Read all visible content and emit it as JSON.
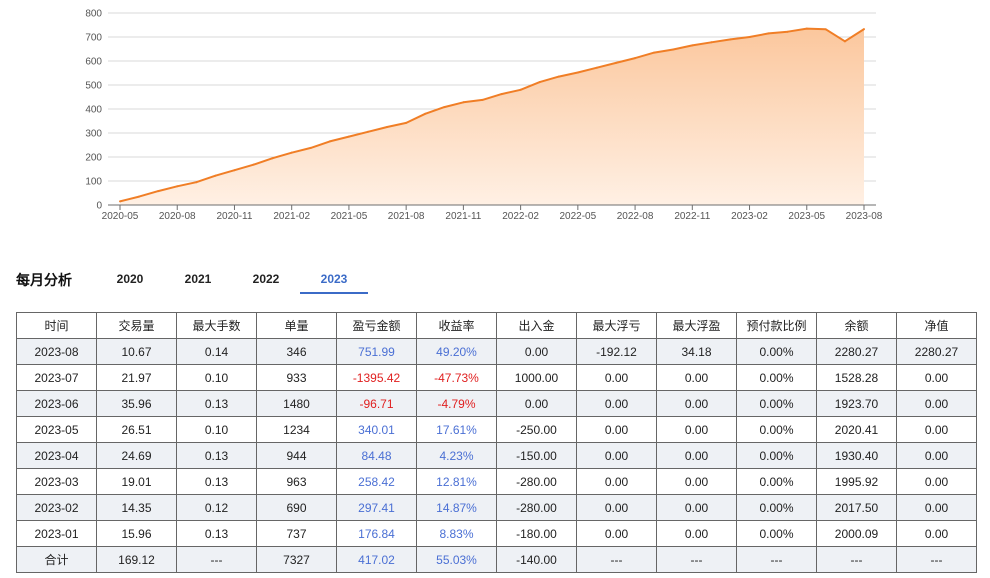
{
  "chart_data": {
    "type": "area",
    "title": "",
    "xlabel": "",
    "ylabel": "",
    "ylim": [
      0,
      800
    ],
    "yticks": [
      0,
      100,
      200,
      300,
      400,
      500,
      600,
      700,
      800
    ],
    "x_tick_labels": [
      "2020-05",
      "2020-08",
      "2020-11",
      "2021-02",
      "2021-05",
      "2021-08",
      "2021-11",
      "2022-02",
      "2022-05",
      "2022-08",
      "2022-11",
      "2023-02",
      "2023-05",
      "2023-08"
    ],
    "x": [
      "2020-05",
      "2020-06",
      "2020-07",
      "2020-08",
      "2020-09",
      "2020-10",
      "2020-11",
      "2020-12",
      "2021-01",
      "2021-02",
      "2021-03",
      "2021-04",
      "2021-05",
      "2021-06",
      "2021-07",
      "2021-08",
      "2021-09",
      "2021-10",
      "2021-11",
      "2021-12",
      "2022-01",
      "2022-02",
      "2022-03",
      "2022-04",
      "2022-05",
      "2022-06",
      "2022-07",
      "2022-08",
      "2022-09",
      "2022-10",
      "2022-11",
      "2022-12",
      "2023-01",
      "2023-02",
      "2023-03",
      "2023-04",
      "2023-05",
      "2023-06",
      "2023-07",
      "2023-08"
    ],
    "values": [
      15,
      35,
      58,
      78,
      95,
      122,
      145,
      168,
      195,
      218,
      238,
      265,
      285,
      305,
      325,
      342,
      380,
      408,
      428,
      438,
      462,
      480,
      512,
      535,
      552,
      572,
      592,
      612,
      635,
      648,
      665,
      678,
      690,
      700,
      715,
      722,
      735,
      732,
      682,
      733
    ],
    "grid": true,
    "colors": {
      "line": "#f07e26",
      "fill_top": "#fbc79d",
      "fill_bottom": "#fff0e4"
    }
  },
  "monthly": {
    "title": "每月分析",
    "tabs": [
      "2020",
      "2021",
      "2022",
      "2023"
    ],
    "active_tab": "2023",
    "headers": [
      "时间",
      "交易量",
      "最大手数",
      "单量",
      "盈亏金额",
      "收益率",
      "出入金",
      "最大浮亏",
      "最大浮盈",
      "预付款比例",
      "余额",
      "净值"
    ],
    "rows": [
      [
        "2023-08",
        "10.67",
        "0.14",
        "346",
        "751.99",
        "49.20%",
        "0.00",
        "-192.12",
        "34.18",
        "0.00%",
        "2280.27",
        "2280.27"
      ],
      [
        "2023-07",
        "21.97",
        "0.10",
        "933",
        "-1395.42",
        "-47.73%",
        "1000.00",
        "0.00",
        "0.00",
        "0.00%",
        "1528.28",
        "0.00"
      ],
      [
        "2023-06",
        "35.96",
        "0.13",
        "1480",
        "-96.71",
        "-4.79%",
        "0.00",
        "0.00",
        "0.00",
        "0.00%",
        "1923.70",
        "0.00"
      ],
      [
        "2023-05",
        "26.51",
        "0.10",
        "1234",
        "340.01",
        "17.61%",
        "-250.00",
        "0.00",
        "0.00",
        "0.00%",
        "2020.41",
        "0.00"
      ],
      [
        "2023-04",
        "24.69",
        "0.13",
        "944",
        "84.48",
        "4.23%",
        "-150.00",
        "0.00",
        "0.00",
        "0.00%",
        "1930.40",
        "0.00"
      ],
      [
        "2023-03",
        "19.01",
        "0.13",
        "963",
        "258.42",
        "12.81%",
        "-280.00",
        "0.00",
        "0.00",
        "0.00%",
        "1995.92",
        "0.00"
      ],
      [
        "2023-02",
        "14.35",
        "0.12",
        "690",
        "297.41",
        "14.87%",
        "-280.00",
        "0.00",
        "0.00",
        "0.00%",
        "2017.50",
        "0.00"
      ],
      [
        "2023-01",
        "15.96",
        "0.13",
        "737",
        "176.84",
        "8.83%",
        "-180.00",
        "0.00",
        "0.00",
        "0.00%",
        "2000.09",
        "0.00"
      ]
    ],
    "total": [
      "合计",
      "169.12",
      "---",
      "7327",
      "417.02",
      "55.03%",
      "-140.00",
      "---",
      "---",
      "---",
      "---",
      "---"
    ],
    "colors": {
      "positive": "#4a6fd4",
      "negative": "#e02020",
      "active_tab": "#3b6bc7"
    }
  }
}
